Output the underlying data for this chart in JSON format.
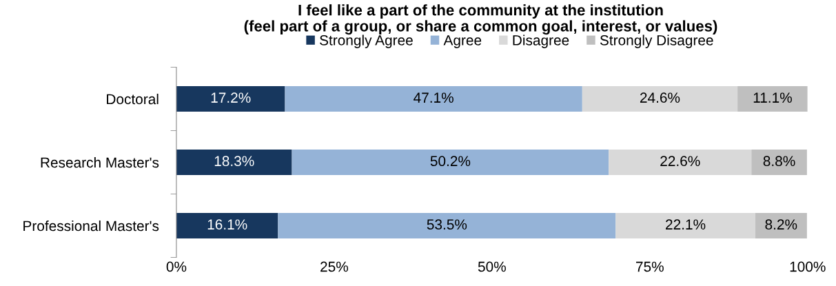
{
  "chart_data": {
    "type": "bar",
    "orientation": "horizontal",
    "stacked": true,
    "title": "I feel like a part of the community at the institution\n(feel part of a group, or share a common goal, interest, or values)",
    "categories": [
      "Doctoral",
      "Research Master's",
      "Professional Master's"
    ],
    "series": [
      {
        "name": "Strongly Agree",
        "color": "#17375e",
        "values": [
          17.2,
          18.3,
          16.1
        ],
        "value_labels": [
          "17.2%",
          "18.3%",
          "16.1%"
        ]
      },
      {
        "name": "Agree",
        "color": "#95b3d7",
        "values": [
          47.1,
          50.2,
          53.5
        ],
        "value_labels": [
          "47.1%",
          "50.2%",
          "53.5%"
        ]
      },
      {
        "name": "Disagree",
        "color": "#d9d9d9",
        "values": [
          24.6,
          22.6,
          22.1
        ],
        "value_labels": [
          "24.6%",
          "22.6%",
          "22.1%"
        ]
      },
      {
        "name": "Strongly Disagree",
        "color": "#bfbfbf",
        "values": [
          11.1,
          8.8,
          8.2
        ],
        "value_labels": [
          "11.1%",
          "8.8%",
          "8.2%"
        ]
      }
    ],
    "xlim": [
      0,
      100
    ],
    "xticks": [
      {
        "value": 0,
        "label": "0%"
      },
      {
        "value": 25,
        "label": "25%"
      },
      {
        "value": 50,
        "label": "50%"
      },
      {
        "value": 75,
        "label": "75%"
      },
      {
        "value": 100,
        "label": "100%"
      }
    ],
    "grid": false,
    "legend": "top"
  }
}
